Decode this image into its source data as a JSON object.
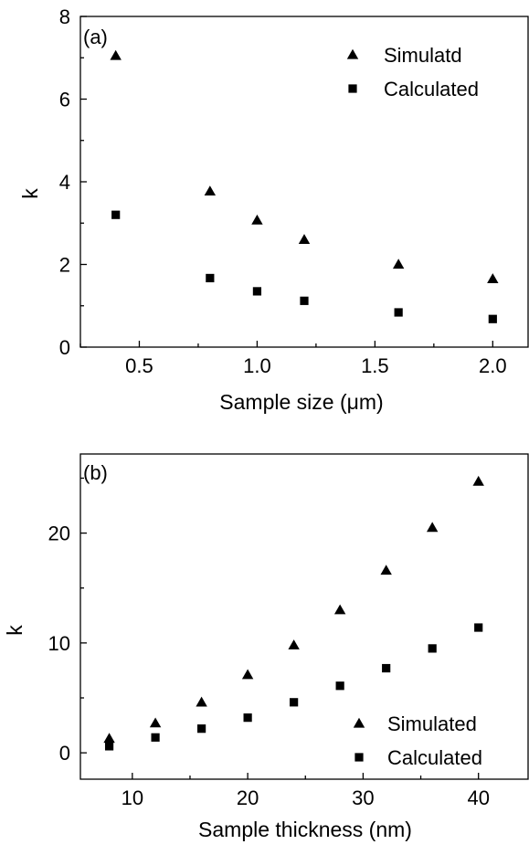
{
  "chart_data": [
    {
      "type": "scatter",
      "panel_label": "(a)",
      "xlabel": "Sample size (μm)",
      "ylabel": "k",
      "xlim": [
        0.25,
        2.15
      ],
      "ylim": [
        0,
        8
      ],
      "xticks": [
        0.5,
        1.0,
        1.5,
        2.0
      ],
      "xtick_labels": [
        "0.5",
        "1.0",
        "1.5",
        "2.0"
      ],
      "yticks": [
        0,
        2,
        4,
        6,
        8
      ],
      "ytick_labels": [
        "0",
        "2",
        "4",
        "6",
        "8"
      ],
      "legend_position": "top-right",
      "grid": false,
      "series": [
        {
          "name": "Simulatd",
          "marker": "triangle",
          "color": "#000000",
          "points": [
            [
              0.4,
              7.05
            ],
            [
              0.8,
              3.77
            ],
            [
              1.0,
              3.07
            ],
            [
              1.2,
              2.6
            ],
            [
              1.6,
              2.0
            ],
            [
              2.0,
              1.65
            ]
          ]
        },
        {
          "name": "Calculated",
          "marker": "square",
          "color": "#000000",
          "points": [
            [
              0.4,
              3.2
            ],
            [
              0.8,
              1.67
            ],
            [
              1.0,
              1.35
            ],
            [
              1.2,
              1.12
            ],
            [
              1.6,
              0.84
            ],
            [
              2.0,
              0.68
            ]
          ]
        }
      ]
    },
    {
      "type": "scatter",
      "panel_label": "(b)",
      "xlabel": "Sample thickness (nm)",
      "ylabel": "k",
      "xlim": [
        5.5,
        44.3
      ],
      "ylim": [
        -2.4,
        27.2
      ],
      "xticks": [
        10,
        20,
        30,
        40
      ],
      "xtick_labels": [
        "10",
        "20",
        "30",
        "40"
      ],
      "yticks": [
        0,
        10,
        20
      ],
      "ytick_labels": [
        "0",
        "10",
        "20"
      ],
      "legend_position": "bottom-right",
      "grid": false,
      "series": [
        {
          "name": "Simulated",
          "marker": "triangle",
          "color": "#000000",
          "points": [
            [
              8,
              1.3
            ],
            [
              12,
              2.7
            ],
            [
              16,
              4.6
            ],
            [
              20,
              7.1
            ],
            [
              24,
              9.8
            ],
            [
              28,
              13.0
            ],
            [
              32,
              16.6
            ],
            [
              36,
              20.5
            ],
            [
              40,
              24.7
            ]
          ]
        },
        {
          "name": "Calculated",
          "marker": "square",
          "color": "#000000",
          "points": [
            [
              8,
              0.6
            ],
            [
              12,
              1.4
            ],
            [
              16,
              2.2
            ],
            [
              20,
              3.2
            ],
            [
              24,
              4.6
            ],
            [
              28,
              6.1
            ],
            [
              32,
              7.7
            ],
            [
              36,
              9.5
            ],
            [
              40,
              11.4
            ]
          ]
        }
      ]
    }
  ]
}
